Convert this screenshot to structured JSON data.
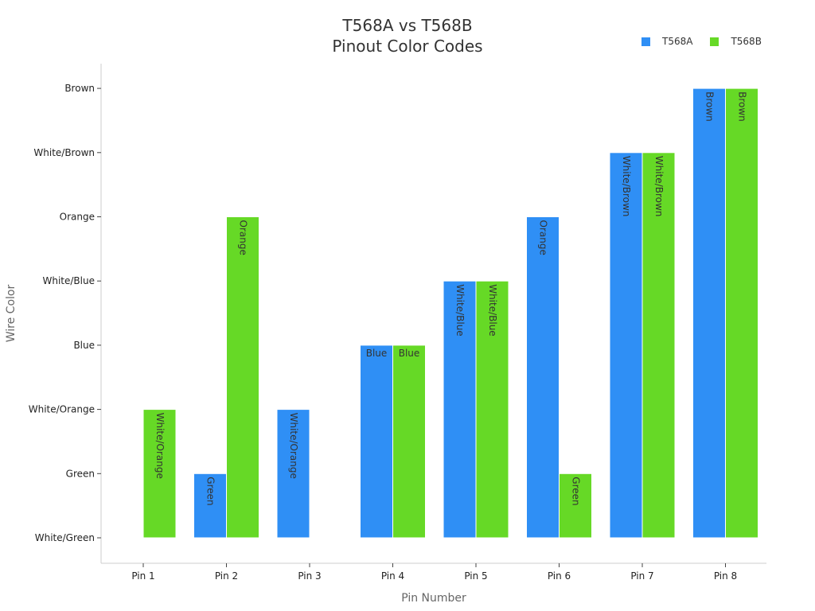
{
  "chart_data": {
    "type": "bar",
    "title_lines": [
      "T568A vs T568B",
      "Pinout Color Codes"
    ],
    "xlabel": "Pin Number",
    "ylabel": "Wire Color",
    "categories": [
      "Pin 1",
      "Pin 2",
      "Pin 3",
      "Pin 4",
      "Pin 5",
      "Pin 6",
      "Pin 7",
      "Pin 8"
    ],
    "y_categories": [
      "White/Green",
      "Green",
      "White/Orange",
      "Blue",
      "White/Blue",
      "Orange",
      "White/Brown",
      "Brown"
    ],
    "series": [
      {
        "name": "T568A",
        "color": "#2f8ff5",
        "values": [
          "White/Green",
          "Green",
          "White/Orange",
          "Blue",
          "White/Blue",
          "Orange",
          "White/Brown",
          "Brown"
        ]
      },
      {
        "name": "T568B",
        "color": "#66d926",
        "values": [
          "White/Orange",
          "Orange",
          "White/Green",
          "Blue",
          "White/Blue",
          "Green",
          "White/Brown",
          "Brown"
        ]
      }
    ],
    "legend_position": "top-right",
    "grid": false
  }
}
